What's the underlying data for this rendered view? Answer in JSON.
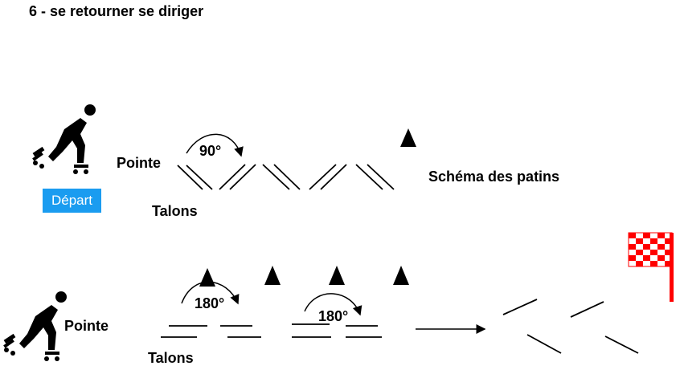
{
  "title": "6 - se retourner se diriger",
  "depart_label": "Départ",
  "row1": {
    "pointe_label": "Pointe",
    "talons_label": "Talons",
    "angle_label": "90°",
    "schema_label": "Schéma des patins"
  },
  "row2": {
    "pointe_label": "Pointe",
    "talons_label": "Talons",
    "angle1_label": "180°",
    "angle2_label": "180°"
  },
  "icons": {
    "skater": "skater-icon",
    "cone": "cone-icon",
    "finish_flag": "checkered-flag-icon"
  },
  "colors": {
    "depart_bg": "#1a9cf0",
    "flag": "#ff0000"
  }
}
